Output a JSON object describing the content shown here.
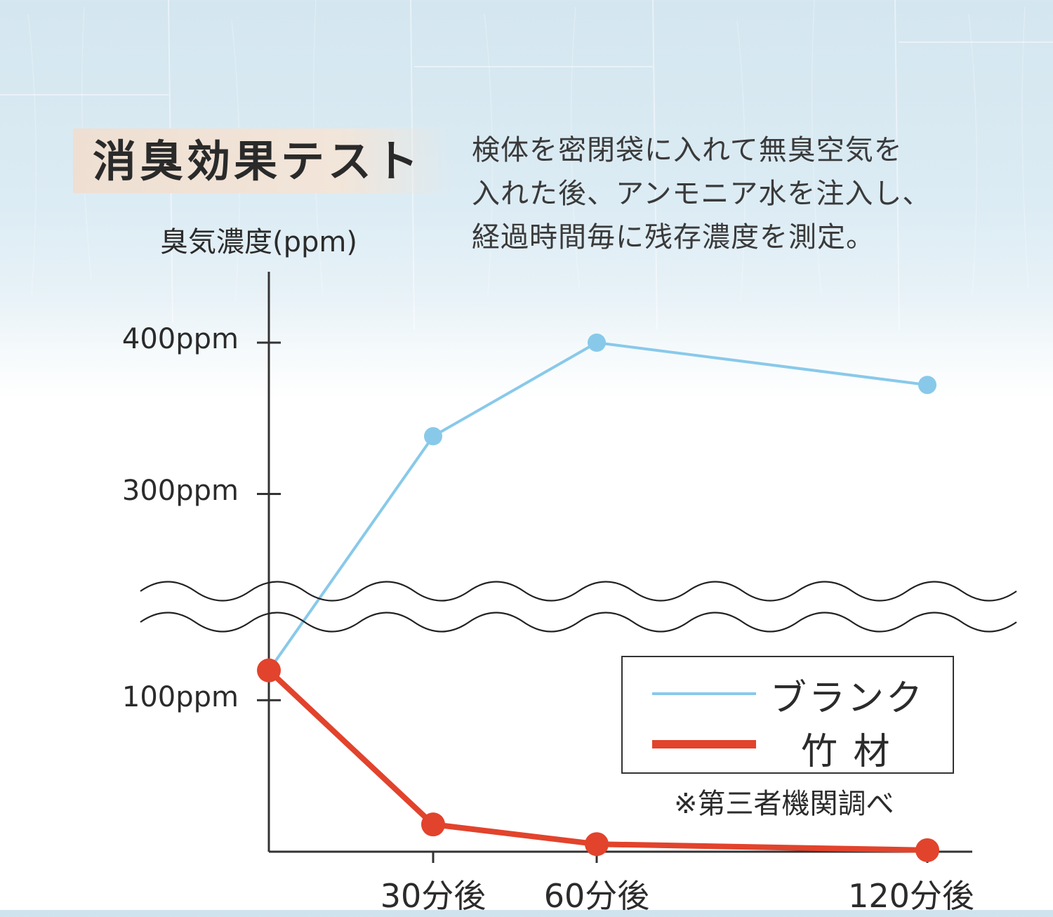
{
  "title": "消臭効果テスト",
  "description": [
    "検体を密閉袋に入れて無臭空気を",
    "入れた後、アンモニア水を注入し、",
    "経過時間毎に残存濃度を測定。"
  ],
  "note": "※第三者機関調べ",
  "colors": {
    "blank": "#88c9ea",
    "bamboo": "#e2432c",
    "axis": "#333333"
  },
  "chart_data": {
    "type": "line",
    "ylabel": "臭気濃度(ppm)",
    "xlabel": "",
    "x": [
      0,
      30,
      60,
      120
    ],
    "categories": [
      "",
      "30分後",
      "60分後",
      "120分後"
    ],
    "y_ticks": [
      {
        "value": 100,
        "label": "100ppm"
      },
      {
        "value": 300,
        "label": "300ppm"
      },
      {
        "value": 400,
        "label": "400ppm"
      }
    ],
    "axis_break": [
      170,
      230
    ],
    "ylim": [
      0,
      450
    ],
    "xlim": [
      0,
      130
    ],
    "legend_position": "lower-right",
    "series": [
      {
        "name": "ブランク",
        "key": "blank",
        "values": [
          125,
          338,
          400,
          372
        ]
      },
      {
        "name": "竹 材",
        "key": "bamboo",
        "values": [
          125,
          18,
          5,
          1
        ]
      }
    ]
  }
}
